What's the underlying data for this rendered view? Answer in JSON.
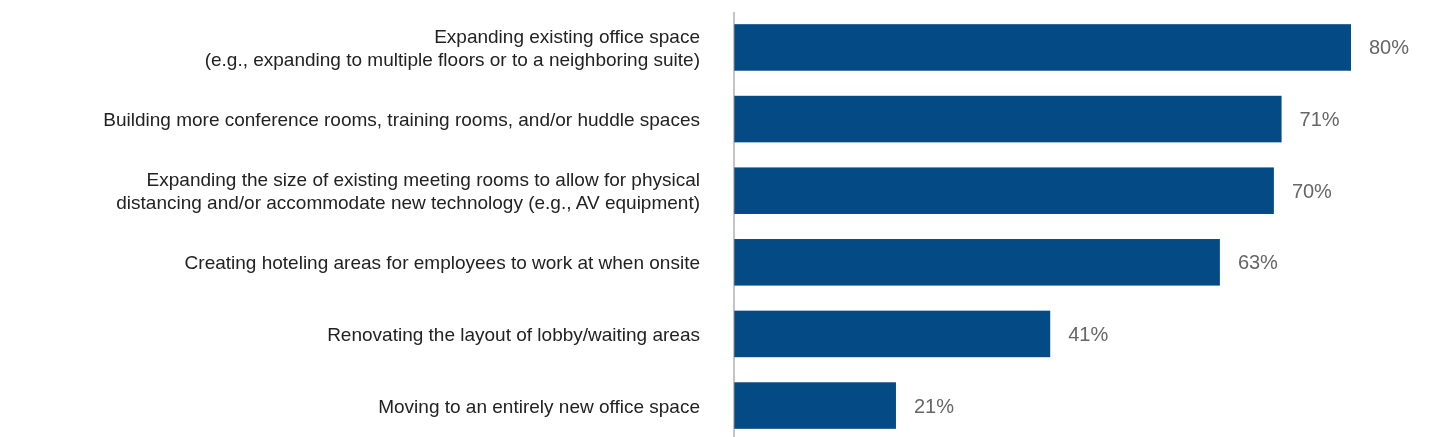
{
  "chart_data": {
    "type": "bar",
    "orientation": "horizontal",
    "categories": [
      "Expanding existing office space\n(e.g., expanding to multiple floors or to a neighboring suite)",
      "Building more conference rooms, training rooms, and/or huddle spaces",
      "Expanding the size of existing meeting rooms to allow for physical\ndistancing and/or accommodate new technology (e.g., AV equipment)",
      "Creating hoteling areas for employees to work at when onsite",
      "Renovating the layout of lobby/waiting areas",
      "Moving to an entirely new office space"
    ],
    "values": [
      80,
      71,
      70,
      63,
      41,
      21
    ],
    "value_labels": [
      "80%",
      "71%",
      "70%",
      "63%",
      "41%",
      "21%"
    ],
    "color": "#044a84",
    "tick_labels": "y"
  }
}
